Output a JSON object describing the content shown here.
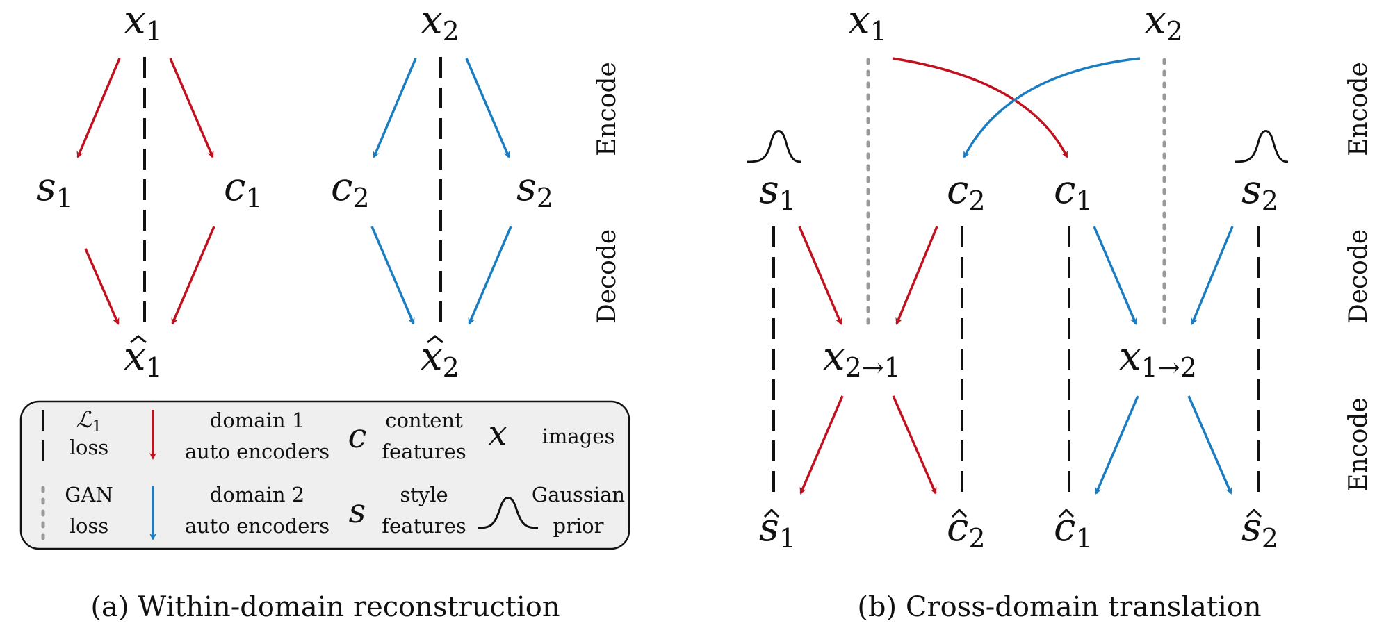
{
  "colors": {
    "domain1": "#c0111f",
    "domain2": "#1a7dc2",
    "legend_bg": "#efefef",
    "gan_dots": "#999999"
  },
  "nodes": {
    "a_x1": {
      "base": "x",
      "sub": "1"
    },
    "a_x2": {
      "base": "x",
      "sub": "2"
    },
    "a_s1": {
      "base": "s",
      "sub": "1"
    },
    "a_c1": {
      "base": "c",
      "sub": "1"
    },
    "a_c2": {
      "base": "c",
      "sub": "2"
    },
    "a_s2": {
      "base": "s",
      "sub": "2"
    },
    "a_xhat1": {
      "base": "x",
      "sub": "1"
    },
    "a_xhat2": {
      "base": "x",
      "sub": "2"
    },
    "b_x1": {
      "base": "x",
      "sub": "1"
    },
    "b_x2": {
      "base": "x",
      "sub": "2"
    },
    "b_s1": {
      "base": "s",
      "sub": "1"
    },
    "b_c2": {
      "base": "c",
      "sub": "2"
    },
    "b_c1": {
      "base": "c",
      "sub": "1"
    },
    "b_s2": {
      "base": "s",
      "sub": "2"
    },
    "b_x21": {
      "base": "x",
      "sub": "2→1"
    },
    "b_x12": {
      "base": "x",
      "sub": "1→2"
    },
    "b_shat1": {
      "base": "s",
      "sub": "1"
    },
    "b_chat2": {
      "base": "c",
      "sub": "2"
    },
    "b_chat1": {
      "base": "c",
      "sub": "1"
    },
    "b_shat2": {
      "base": "s",
      "sub": "2"
    }
  },
  "side_labels": {
    "a_encode": "Encode",
    "a_decode": "Decode",
    "b_encode_top": "Encode",
    "b_decode": "Decode",
    "b_encode_bottom": "Encode"
  },
  "legend": {
    "l1_symbol": "ℒ",
    "l1_sub": "1",
    "l1_label": "loss",
    "gan_line1": "GAN",
    "gan_line2": "loss",
    "domain1_line1": "domain 1",
    "domain1_line2": "auto encoders",
    "domain2_line1": "domain 2",
    "domain2_line2": "auto encoders",
    "content_symbol": "c",
    "content_line1": "content",
    "content_line2": "features",
    "style_symbol": "s",
    "style_line1": "style",
    "style_line2": "features",
    "images_symbol": "x",
    "images_label": "images",
    "gauss_line1": "Gaussian",
    "gauss_line2": "prior"
  },
  "captions": {
    "a": "(a) Within-domain reconstruction",
    "b": "(b) Cross-domain translation"
  }
}
